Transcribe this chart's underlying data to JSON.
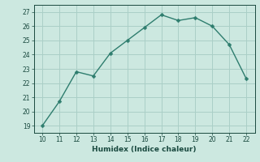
{
  "x": [
    10,
    11,
    12,
    13,
    14,
    15,
    16,
    17,
    18,
    19,
    20,
    21,
    22
  ],
  "y": [
    19.0,
    20.7,
    22.8,
    22.5,
    24.1,
    25.0,
    25.9,
    26.8,
    26.4,
    26.6,
    26.0,
    24.7,
    22.3
  ],
  "xlabel": "Humidex (Indice chaleur)",
  "ylim": [
    18.5,
    27.5
  ],
  "xlim": [
    9.5,
    22.5
  ],
  "yticks": [
    19,
    20,
    21,
    22,
    23,
    24,
    25,
    26,
    27
  ],
  "xticks": [
    10,
    11,
    12,
    13,
    14,
    15,
    16,
    17,
    18,
    19,
    20,
    21,
    22
  ],
  "line_color": "#2e7d6e",
  "marker_color": "#2e7d6e",
  "bg_color": "#cce8e0",
  "grid_color": "#aacfc7",
  "xlabel_color": "#1a4a40",
  "tick_color": "#1a4a40",
  "marker_size": 2.5,
  "line_width": 1.0
}
